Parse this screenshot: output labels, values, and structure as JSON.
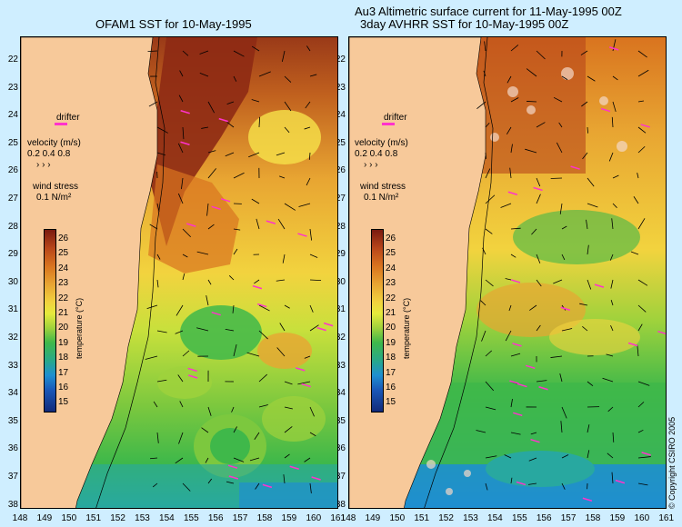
{
  "left_panel": {
    "title": "OFAM1 SST for 10-May-1995"
  },
  "right_panel": {
    "title_line1": "Au3 Altimetric surface current for 11-May-1995 00Z",
    "title_line2": "3day AVHRR SST for 10-May-1995 00Z"
  },
  "legend": {
    "drifter": "drifter",
    "velocity_label": "velocity (m/s)",
    "velocity_values": "0.2 0.4 0.8",
    "wind_label": "wind stress",
    "wind_value": "0.1 N/m²"
  },
  "colorbar": {
    "title": "temperature (°C)",
    "ticks": [
      "26",
      "25",
      "24",
      "23",
      "22",
      "21",
      "20",
      "19",
      "18",
      "17",
      "16",
      "15"
    ]
  },
  "latitudes": [
    "22",
    "23",
    "24",
    "25",
    "26",
    "27",
    "28",
    "29",
    "30",
    "31",
    "32",
    "33",
    "34",
    "35",
    "36",
    "37",
    "38"
  ],
  "longitudes": [
    "148",
    "149",
    "150",
    "151",
    "152",
    "153",
    "154",
    "155",
    "156",
    "157",
    "158",
    "159",
    "160",
    "161"
  ],
  "copyright": "© Copyright CSIRO 2005",
  "colors": {
    "land": "#f7c99a",
    "hot": "#8e2a14",
    "warm": "#e8a532",
    "mid": "#f2d33e",
    "cool": "#3fb84a",
    "cold": "#1f8fd0",
    "wind_arrow": "#ff33cc"
  }
}
